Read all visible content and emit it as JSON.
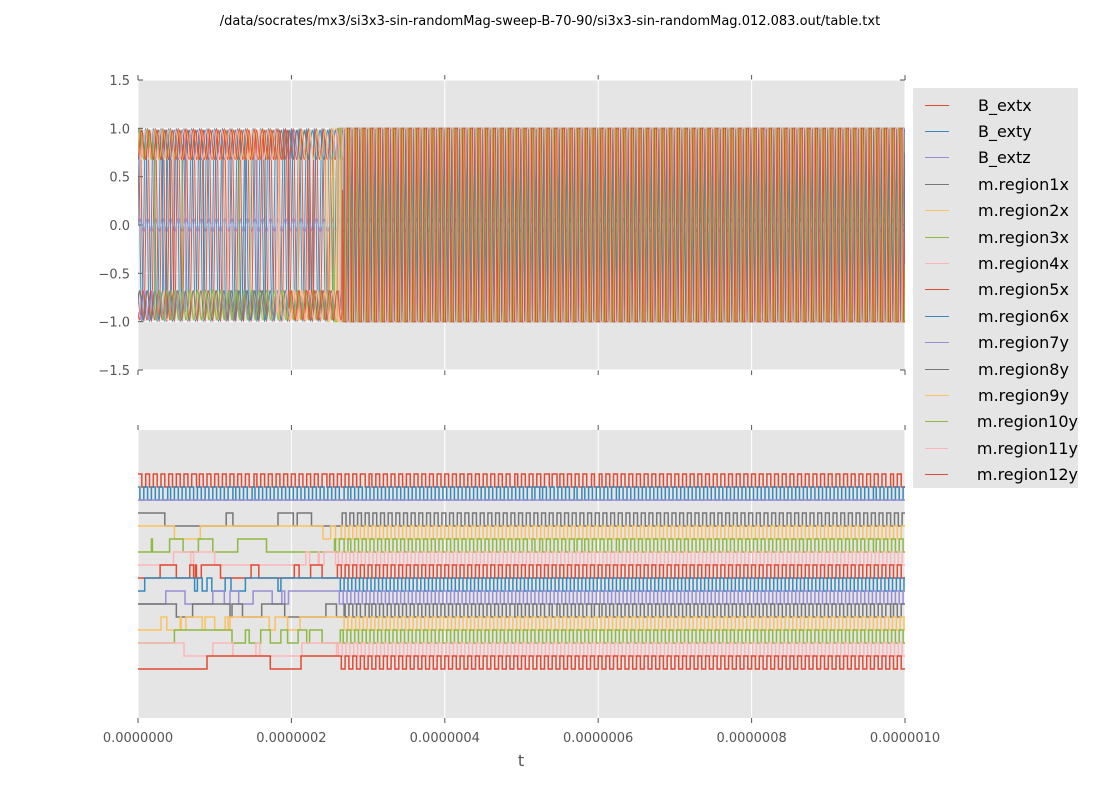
{
  "chart_data": [
    {
      "type": "line",
      "title": "/data/socrates/mx3/si3x3-sin-randomMag-sweep-B-70-90/si3x3-sin-randomMag.012.083.out/table.txt",
      "xlabel": "",
      "ylabel": "",
      "xlim": [
        0,
        1e-06
      ],
      "ylim": [
        -1.5,
        1.5
      ],
      "yticks": [
        "1.5",
        "1.0",
        "0.5",
        "0.0",
        "−0.5",
        "−1.0",
        "−1.5"
      ],
      "ytick_values": [
        1.5,
        1.0,
        0.5,
        0.0,
        -0.5,
        -1.0,
        -1.5
      ],
      "grid": true,
      "drive_frequency_hz": 100000000.0,
      "switch_time_s": 2.6e-07
    },
    {
      "type": "line",
      "xlabel": "t",
      "xlim": [
        0,
        1e-06
      ],
      "xticks": [
        "0.0000000",
        "0.0000002",
        "0.0000004",
        "0.0000006",
        "0.0000008",
        "0.0000010"
      ],
      "xtick_values": [
        0,
        2e-07,
        4e-07,
        6e-07,
        8e-07,
        1e-06
      ],
      "grid": true,
      "style": "stacked digital traces, no y ticks"
    }
  ],
  "legend": {
    "placement": "outside-right",
    "series": [
      {
        "name": "B_extx",
        "color": "#E24A33"
      },
      {
        "name": "B_exty",
        "color": "#348ABD"
      },
      {
        "name": "B_extz",
        "color": "#988ED5"
      },
      {
        "name": "m.region1x",
        "color": "#777777"
      },
      {
        "name": "m.region2x",
        "color": "#FBC15E"
      },
      {
        "name": "m.region3x",
        "color": "#8EBA42"
      },
      {
        "name": "m.region4x",
        "color": "#FFB5B8"
      },
      {
        "name": "m.region5x",
        "color": "#E24A33"
      },
      {
        "name": "m.region6x",
        "color": "#348ABD"
      },
      {
        "name": "m.region7y",
        "color": "#988ED5"
      },
      {
        "name": "m.region8y",
        "color": "#777777"
      },
      {
        "name": "m.region9y",
        "color": "#FBC15E"
      },
      {
        "name": "m.region10y",
        "color": "#8EBA42"
      },
      {
        "name": "m.region11y",
        "color": "#FFB5B8"
      },
      {
        "name": "m.region12y",
        "color": "#E24A33"
      }
    ]
  }
}
